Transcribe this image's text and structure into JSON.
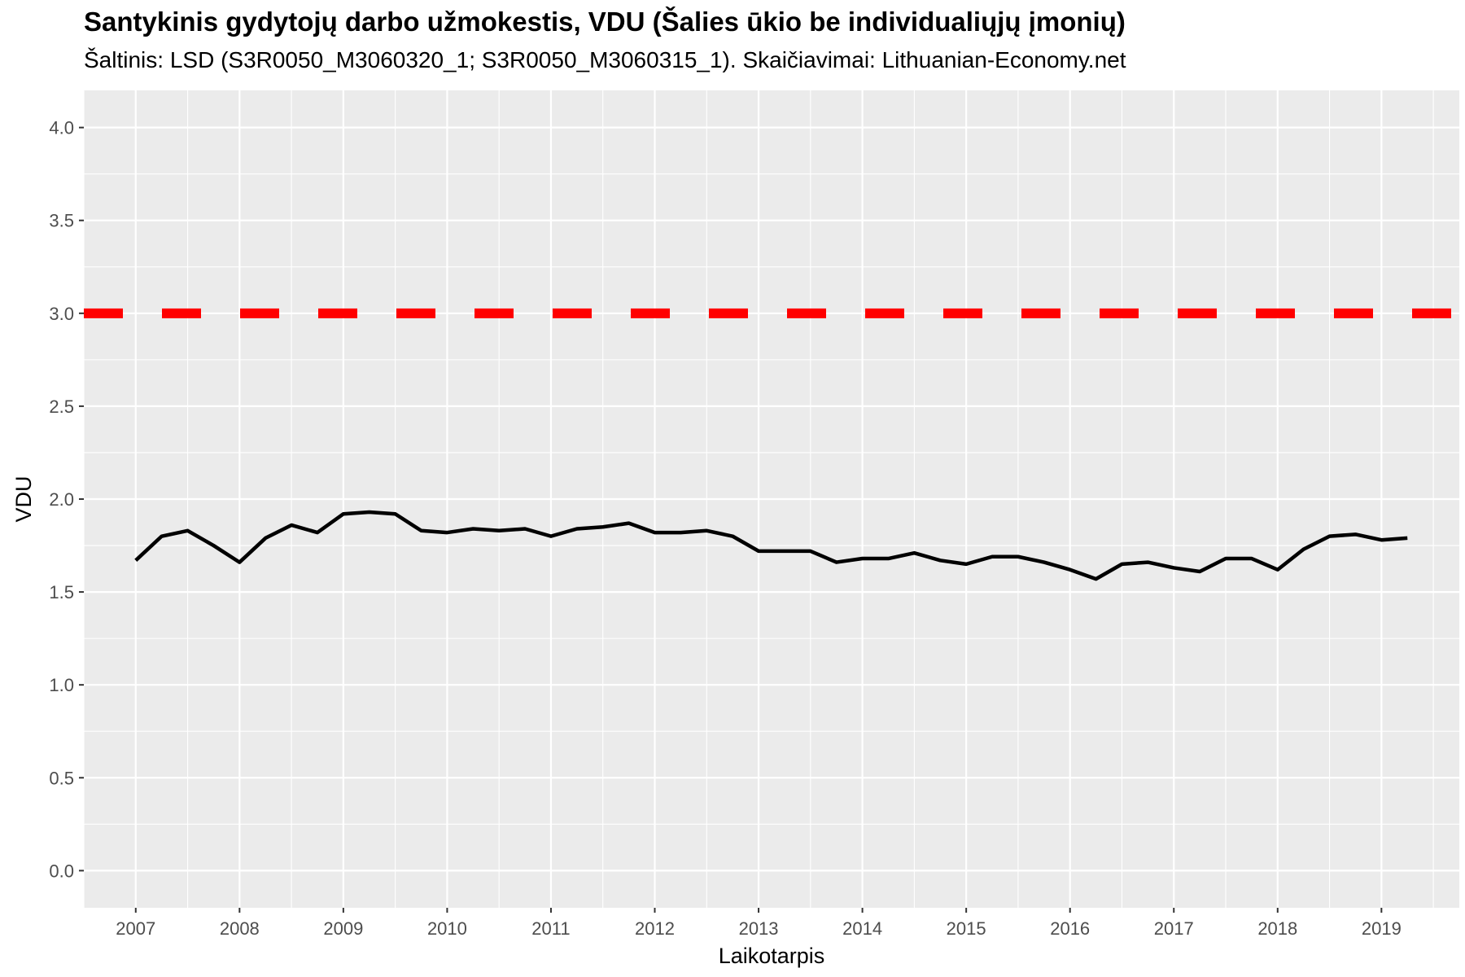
{
  "chart_data": {
    "type": "line",
    "title": "Santykinis gydytojų darbo užmokestis, VDU (Šalies ūkio be individualiųjų įmonių)",
    "subtitle": "Šaltinis: LSD (S3R0050_M3060320_1; S3R0050_M3060315_1). Skaičiavimai: Lithuanian-Economy.net",
    "xlabel": "Laikotarpis",
    "ylabel": "VDU",
    "xlim": [
      "2006-07",
      "2019-10"
    ],
    "ylim": [
      -0.2,
      4.2
    ],
    "x_tick_labels": [
      "2007",
      "2008",
      "2009",
      "2010",
      "2011",
      "2012",
      "2013",
      "2014",
      "2015",
      "2016",
      "2017",
      "2018",
      "2019"
    ],
    "y_tick_labels": [
      "0.0",
      "0.5",
      "1.0",
      "1.5",
      "2.0",
      "2.5",
      "3.0",
      "3.5",
      "4.0"
    ],
    "grid": true,
    "reference_line": {
      "y": 3.0,
      "style": "dashed",
      "color": "#ff0000"
    },
    "series": [
      {
        "color": "#000000",
        "x": [
          "2007-01",
          "2007-04",
          "2007-07",
          "2007-10",
          "2008-01",
          "2008-04",
          "2008-07",
          "2008-10",
          "2009-01",
          "2009-04",
          "2009-07",
          "2009-10",
          "2010-01",
          "2010-04",
          "2010-07",
          "2010-10",
          "2011-01",
          "2011-04",
          "2011-07",
          "2011-10",
          "2012-01",
          "2012-04",
          "2012-07",
          "2012-10",
          "2013-01",
          "2013-04",
          "2013-07",
          "2013-10",
          "2014-01",
          "2014-04",
          "2014-07",
          "2014-10",
          "2015-01",
          "2015-04",
          "2015-07",
          "2015-10",
          "2016-01",
          "2016-04",
          "2016-07",
          "2016-10",
          "2017-01",
          "2017-04",
          "2017-07",
          "2017-10",
          "2018-01",
          "2018-04",
          "2018-07",
          "2018-10",
          "2019-01",
          "2019-04"
        ],
        "y": [
          1.67,
          1.8,
          1.83,
          1.75,
          1.66,
          1.79,
          1.86,
          1.82,
          1.92,
          1.93,
          1.92,
          1.83,
          1.82,
          1.84,
          1.83,
          1.84,
          1.8,
          1.84,
          1.85,
          1.87,
          1.82,
          1.82,
          1.83,
          1.8,
          1.72,
          1.72,
          1.72,
          1.66,
          1.68,
          1.68,
          1.71,
          1.67,
          1.65,
          1.69,
          1.69,
          1.66,
          1.62,
          1.57,
          1.65,
          1.66,
          1.63,
          1.61,
          1.68,
          1.68,
          1.62,
          1.73,
          1.8,
          1.81,
          1.78,
          1.79
        ]
      }
    ]
  }
}
